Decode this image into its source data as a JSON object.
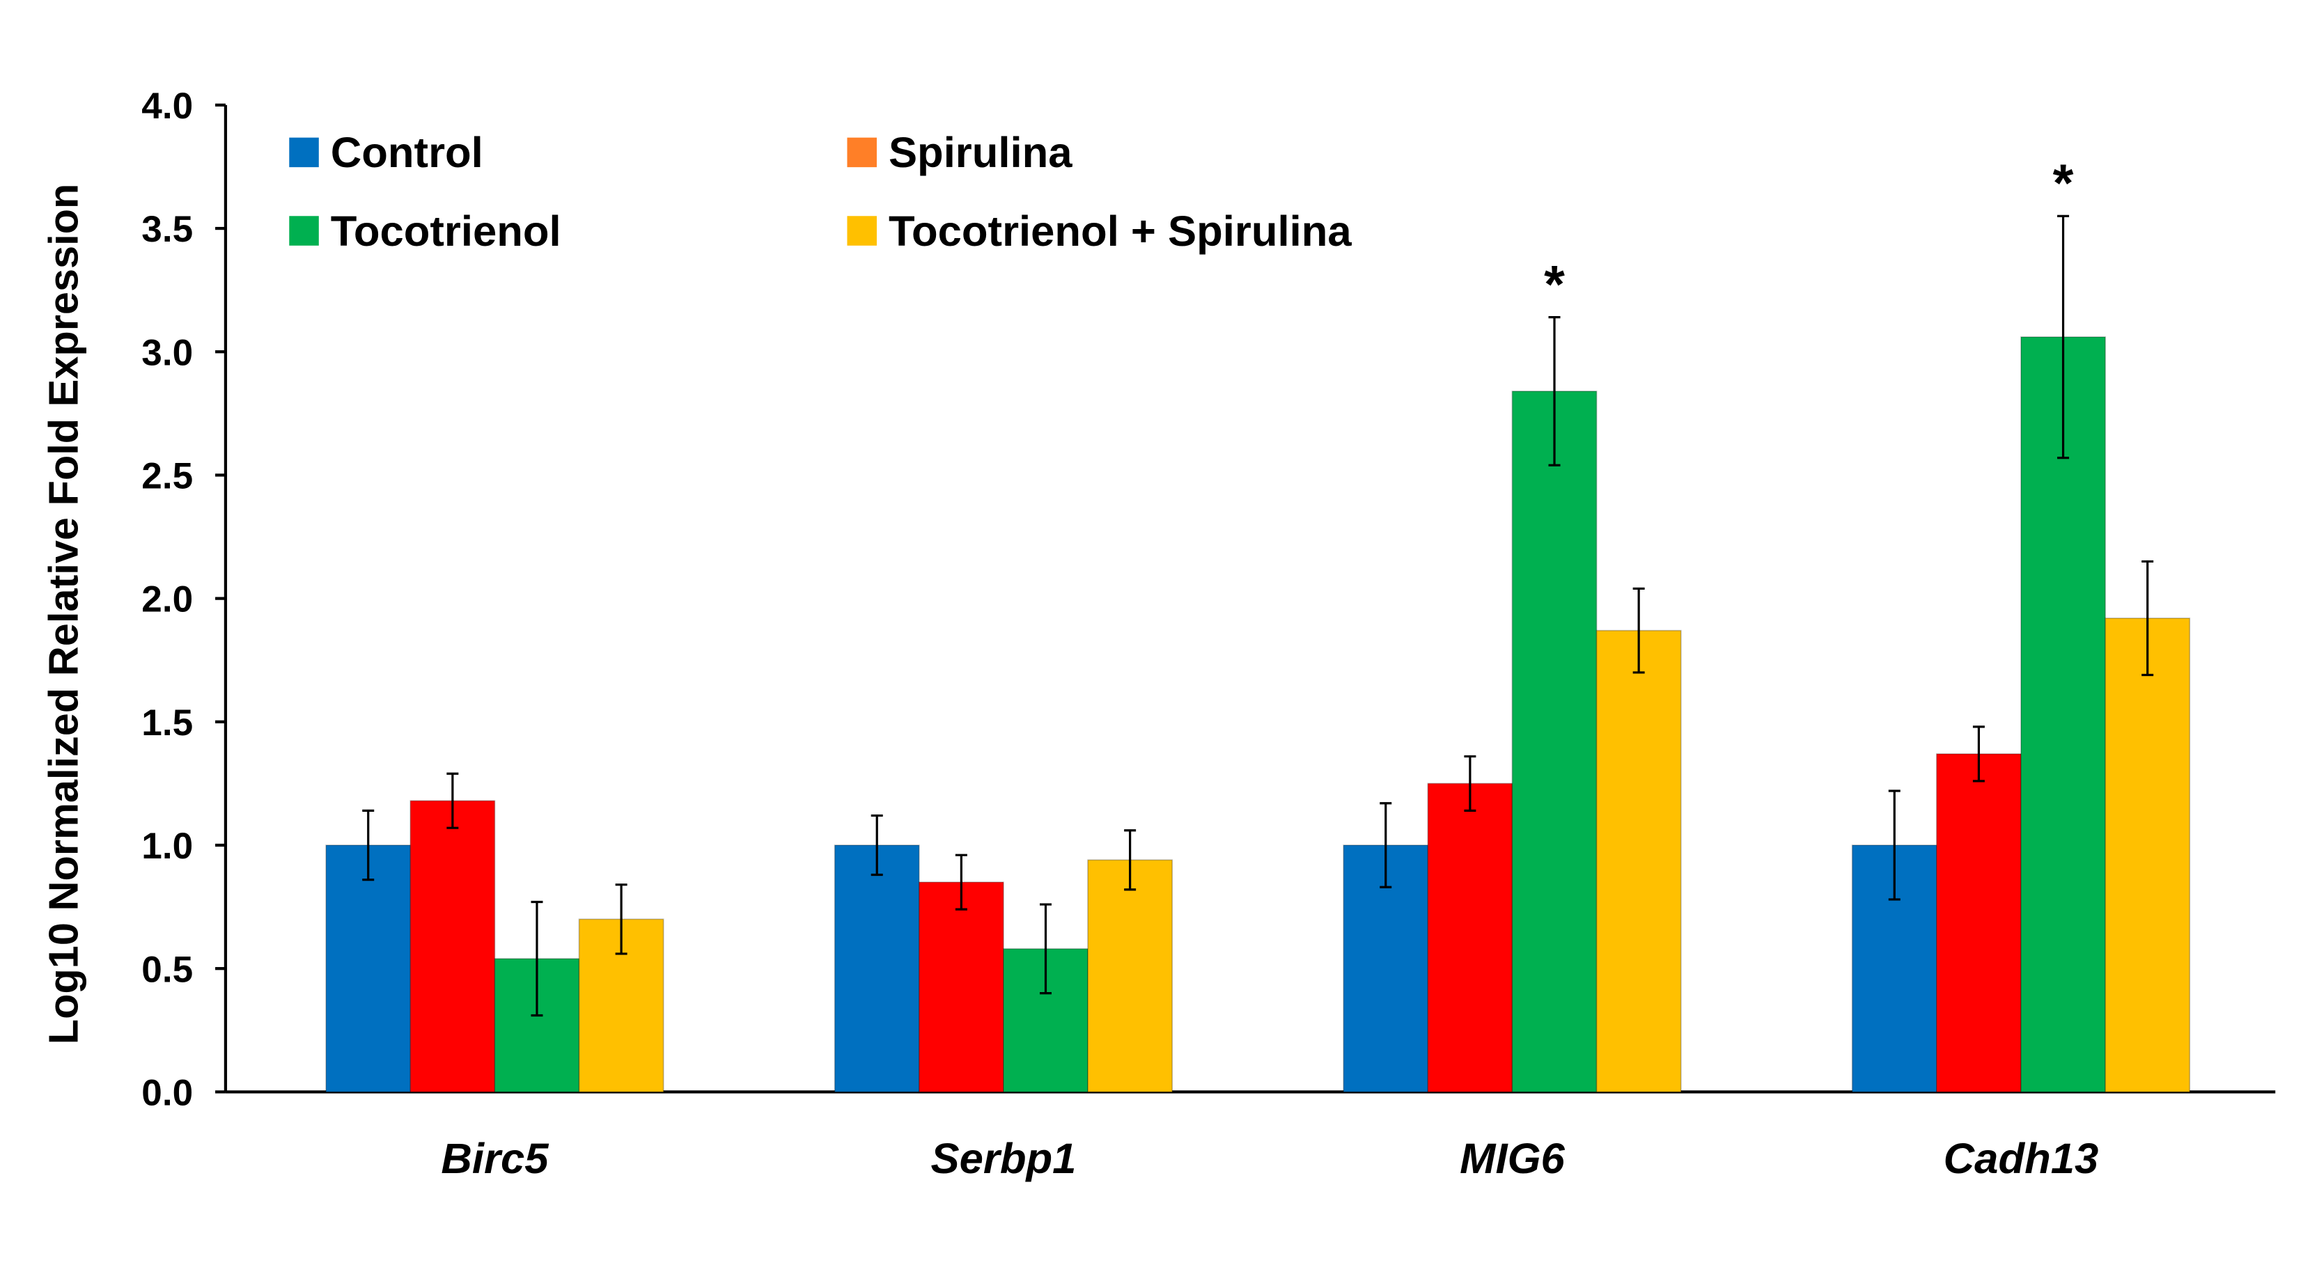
{
  "chart_data": {
    "type": "bar",
    "title": "",
    "xlabel": "",
    "ylabel": "Log10 Normalized Relative Fold Expression",
    "ylim": [
      0,
      4.0
    ],
    "yticks": [
      "0.0",
      "0.5",
      "1.0",
      "1.5",
      "2.0",
      "2.5",
      "3.0",
      "3.5",
      "4.0"
    ],
    "categories": [
      "Birc5",
      "Serbp1",
      "MIG6",
      "Cadh13"
    ],
    "series": [
      {
        "name": "Control",
        "color": "#0070C0",
        "legend_color": "#0070C0",
        "values": [
          1.0,
          1.0,
          1.0,
          1.0
        ],
        "errors": [
          0.14,
          0.12,
          0.17,
          0.22
        ]
      },
      {
        "name": "Spirulina",
        "color": "#FF0000",
        "legend_color": "#FF7F27",
        "values": [
          1.18,
          0.85,
          1.25,
          1.37
        ],
        "errors": [
          0.11,
          0.11,
          0.11,
          0.11
        ]
      },
      {
        "name": "Tocotrienol",
        "color": "#00B050",
        "legend_color": "#00B050",
        "values": [
          0.54,
          0.58,
          2.84,
          3.06
        ],
        "errors": [
          0.23,
          0.18,
          0.3,
          0.49
        ]
      },
      {
        "name": "Tocotrienol + Spirulina",
        "color": "#FFC000",
        "legend_color": "#FFC000",
        "values": [
          0.7,
          0.94,
          1.87,
          1.92
        ],
        "errors": [
          0.14,
          0.12,
          0.17,
          0.23
        ]
      }
    ],
    "annotations": [
      {
        "text": "*",
        "category": "MIG6",
        "series": "Tocotrienol"
      },
      {
        "text": "*",
        "category": "Cadh13",
        "series": "Tocotrienol"
      }
    ],
    "grid": false,
    "legend_position": "top-left"
  }
}
